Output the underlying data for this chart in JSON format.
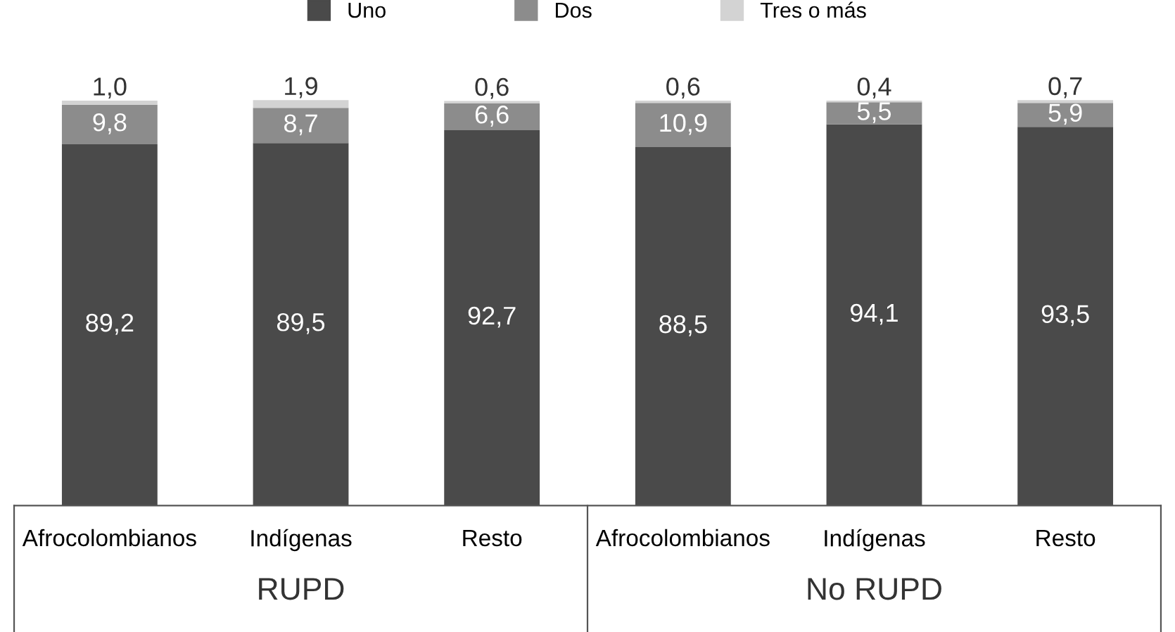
{
  "chart_data": {
    "type": "bar",
    "stacked": true,
    "legend": "top",
    "categories": [
      "Afrocolombianos",
      "Indígenas",
      "Resto",
      "Afrocolombianos",
      "Indígenas",
      "Resto"
    ],
    "series": [
      {
        "name": "Uno",
        "color": "#4a4a4a",
        "values": [
          89.2,
          89.5,
          92.7,
          88.5,
          94.1,
          93.5
        ],
        "value_labels": [
          "89,2",
          "89,5",
          "92,7",
          "88,5",
          "94,1",
          "93,5"
        ]
      },
      {
        "name": "Dos",
        "color": "#8c8c8c",
        "values": [
          9.8,
          8.7,
          6.6,
          10.9,
          5.5,
          5.9
        ],
        "value_labels": [
          "9,8",
          "8,7",
          "6,6",
          "10,9",
          "5,5",
          "5,9"
        ]
      },
      {
        "name": "Tres o más",
        "color": "#d3d3d3",
        "values": [
          1.0,
          1.9,
          0.6,
          0.6,
          0.4,
          0.7
        ],
        "value_labels": [
          "1,0",
          "1,9",
          "0,6",
          "0,6",
          "0,4",
          "0,7"
        ]
      }
    ],
    "annotations": [
      "RUPD",
      "No RUPD"
    ]
  }
}
